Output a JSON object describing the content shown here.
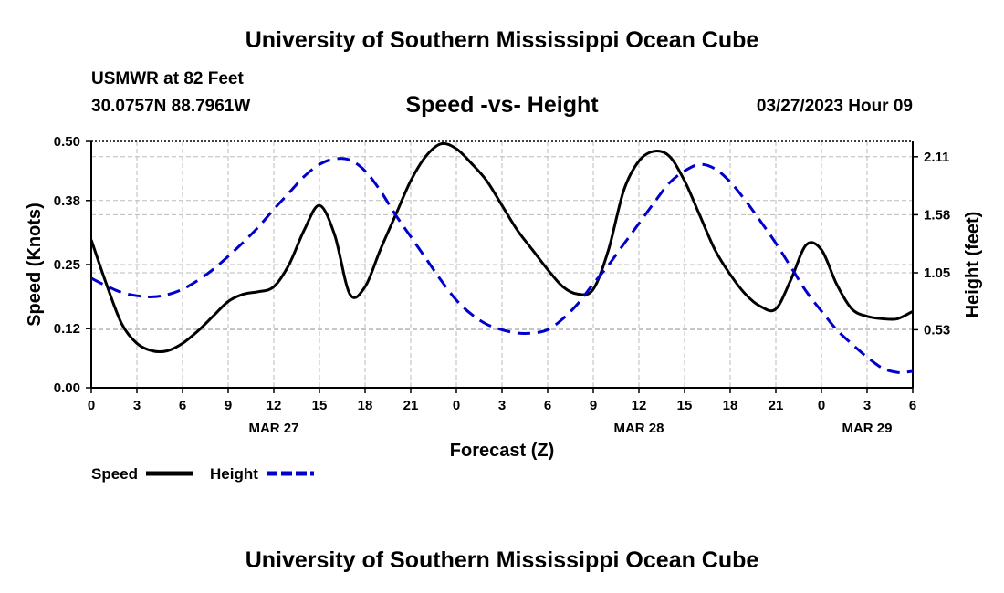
{
  "header": {
    "title": "University of Southern Mississippi Ocean Cube",
    "station": "USMWR at 82 Feet",
    "location": "30.0757N  88.7961W",
    "datetime": "03/27/2023 Hour 09",
    "footer_title": "University of Southern Mississippi Ocean Cube"
  },
  "chart_data": {
    "type": "line",
    "title": "Speed -vs- Height",
    "xlabel": "Forecast (Z)",
    "ylabel_left": "Speed (Knots)",
    "ylabel_right": "Height (feet)",
    "x_range_hours": [
      0,
      54
    ],
    "x_tick_labels": [
      "0",
      "3",
      "6",
      "9",
      "12",
      "15",
      "18",
      "21",
      "0",
      "3",
      "6",
      "9",
      "12",
      "15",
      "18",
      "21",
      "0",
      "3",
      "6"
    ],
    "date_labels": [
      {
        "label": "MAR 27",
        "hour": 12
      },
      {
        "label": "MAR 28",
        "hour": 36
      },
      {
        "label": "MAR 29",
        "hour": 51
      }
    ],
    "y_left": {
      "range": [
        0,
        0.5
      ],
      "ticks": [
        0.0,
        0.12,
        0.25,
        0.38,
        0.5
      ],
      "tick_labels": [
        "0.00",
        "0.12",
        "0.25",
        "0.38",
        "0.50"
      ]
    },
    "y_right": {
      "range": [
        0.0,
        2.25
      ],
      "ticks": [
        0.53,
        1.05,
        1.58,
        2.11
      ],
      "tick_labels": [
        "0.53",
        "1.05",
        "1.58",
        "2.11"
      ]
    },
    "grid": true,
    "series": [
      {
        "name": "Speed",
        "axis": "left",
        "color": "#000000",
        "style": "solid",
        "x": [
          0,
          1,
          2,
          3,
          4,
          5,
          6,
          7,
          8,
          9,
          10,
          11,
          12,
          13,
          14,
          15,
          16,
          17,
          18,
          19,
          20,
          21,
          22,
          23,
          24,
          25,
          26,
          27,
          28,
          29,
          30,
          31,
          32,
          33,
          34,
          35,
          36,
          37,
          38,
          39,
          40,
          41,
          42,
          43,
          44,
          45,
          46,
          47,
          48,
          49,
          50,
          51,
          52,
          53,
          54
        ],
        "values": [
          0.3,
          0.21,
          0.13,
          0.09,
          0.075,
          0.075,
          0.09,
          0.115,
          0.145,
          0.175,
          0.19,
          0.195,
          0.205,
          0.25,
          0.32,
          0.37,
          0.31,
          0.19,
          0.205,
          0.28,
          0.35,
          0.42,
          0.47,
          0.495,
          0.485,
          0.455,
          0.42,
          0.37,
          0.32,
          0.28,
          0.24,
          0.205,
          0.19,
          0.2,
          0.28,
          0.4,
          0.46,
          0.48,
          0.47,
          0.42,
          0.35,
          0.28,
          0.23,
          0.19,
          0.165,
          0.16,
          0.22,
          0.29,
          0.28,
          0.21,
          0.16,
          0.145,
          0.14,
          0.14,
          0.155
        ]
      },
      {
        "name": "Height",
        "axis": "right",
        "color": "#0000cc",
        "style": "dashed",
        "x": [
          0,
          1,
          2,
          3,
          4,
          5,
          6,
          7,
          8,
          9,
          10,
          11,
          12,
          13,
          14,
          15,
          16,
          17,
          18,
          19,
          20,
          21,
          22,
          23,
          24,
          25,
          26,
          27,
          28,
          29,
          30,
          31,
          32,
          33,
          34,
          35,
          36,
          37,
          38,
          39,
          40,
          41,
          42,
          43,
          44,
          45,
          46,
          47,
          48,
          49,
          50,
          51,
          52,
          53,
          54
        ],
        "values": [
          1.0,
          0.93,
          0.87,
          0.84,
          0.83,
          0.85,
          0.9,
          0.98,
          1.08,
          1.2,
          1.33,
          1.47,
          1.63,
          1.78,
          1.93,
          2.04,
          2.09,
          2.08,
          1.98,
          1.8,
          1.58,
          1.38,
          1.18,
          0.98,
          0.8,
          0.67,
          0.58,
          0.53,
          0.5,
          0.5,
          0.53,
          0.63,
          0.77,
          0.95,
          1.12,
          1.31,
          1.5,
          1.69,
          1.87,
          1.98,
          2.04,
          2.0,
          1.88,
          1.71,
          1.52,
          1.32,
          1.1,
          0.88,
          0.7,
          0.53,
          0.4,
          0.28,
          0.18,
          0.14,
          0.15
        ]
      }
    ],
    "legend": [
      {
        "label": "Speed",
        "style": "solid",
        "color": "#000000"
      },
      {
        "label": "Height",
        "style": "dashed",
        "color": "#0000cc"
      }
    ]
  }
}
